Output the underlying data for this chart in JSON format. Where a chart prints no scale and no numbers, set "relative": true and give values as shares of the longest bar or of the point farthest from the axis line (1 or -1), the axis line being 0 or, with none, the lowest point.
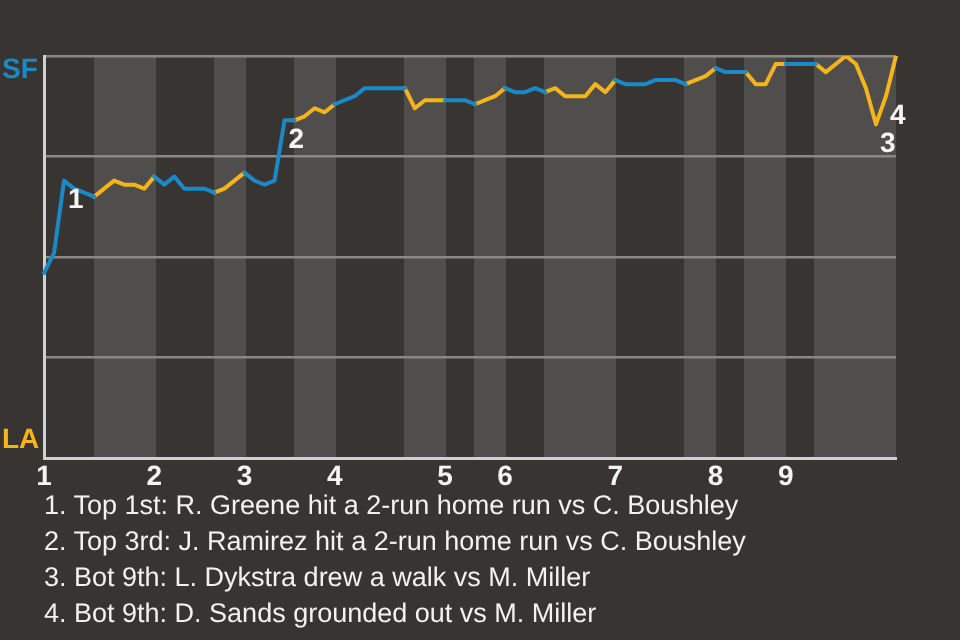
{
  "chart_data": {
    "type": "line",
    "relative": true,
    "categories": [
      "1",
      null,
      null,
      null,
      null,
      null,
      null,
      null,
      null,
      null,
      null,
      "2",
      null,
      null,
      null,
      null,
      null,
      null,
      null,
      null,
      "3",
      null,
      null,
      null,
      null,
      null,
      null,
      null,
      null,
      "4",
      null,
      null,
      null,
      null,
      null,
      null,
      null,
      null,
      null,
      null,
      "5",
      null,
      null,
      null,
      null,
      null,
      "6",
      null,
      null,
      null,
      null,
      null,
      null,
      null,
      null,
      null,
      null,
      "7",
      null,
      null,
      null,
      null,
      null,
      null,
      null,
      null,
      null,
      "8",
      null,
      null,
      null,
      null,
      null,
      null,
      "9",
      null,
      null,
      null,
      null,
      null,
      null,
      null,
      null,
      null,
      null,
      null
    ],
    "series": [
      {
        "color": "#1a8ac6",
        "values": [
          0.46,
          0.51,
          0.69,
          0.67,
          0.66,
          0.65,
          null,
          null,
          null,
          null,
          null,
          0.7,
          0.68,
          0.7,
          0.67,
          0.67,
          0.67,
          0.66,
          null,
          null,
          0.71,
          0.69,
          0.68,
          0.69,
          0.84,
          0.84,
          null,
          null,
          null,
          0.88,
          0.89,
          0.9,
          0.92,
          0.92,
          0.92,
          0.92,
          0.92,
          null,
          null,
          null,
          0.89,
          0.89,
          0.89,
          0.88,
          null,
          null,
          0.92,
          0.91,
          0.91,
          0.92,
          0.91,
          null,
          null,
          null,
          null,
          null,
          null,
          0.94,
          0.93,
          0.93,
          0.93,
          0.94,
          0.94,
          0.94,
          0.93,
          null,
          null,
          0.97,
          0.96,
          0.96,
          0.96,
          null,
          null,
          null,
          0.98,
          0.98,
          0.98,
          0.98,
          null,
          null,
          null,
          null,
          null,
          null,
          null,
          null
        ]
      },
      {
        "color": "#f5b41c",
        "values": [
          null,
          null,
          null,
          null,
          null,
          0.65,
          0.67,
          0.69,
          0.68,
          0.68,
          0.67,
          0.7,
          null,
          null,
          null,
          null,
          null,
          0.66,
          0.67,
          0.69,
          0.71,
          null,
          null,
          null,
          null,
          0.84,
          0.85,
          0.87,
          0.86,
          0.88,
          null,
          null,
          null,
          null,
          null,
          null,
          0.92,
          0.87,
          0.89,
          0.89,
          0.89,
          null,
          null,
          0.88,
          0.89,
          0.9,
          0.92,
          null,
          null,
          null,
          0.91,
          0.92,
          0.9,
          0.9,
          0.9,
          0.93,
          0.91,
          0.94,
          null,
          null,
          null,
          null,
          null,
          null,
          0.93,
          0.94,
          0.95,
          0.97,
          null,
          null,
          0.96,
          0.93,
          0.93,
          0.98,
          0.98,
          null,
          null,
          0.98,
          0.96,
          0.98,
          1,
          0.98,
          0.92,
          0.83,
          0.9,
          1
        ]
      }
    ],
    "grid": "y",
    "marker": "none",
    "annotations": [
      "SF",
      "LA",
      "1",
      "2",
      "3",
      "4",
      "1. Top 1st: R. Greene hit a 2-run home run vs C. Boushley",
      "2. Top 3rd: J. Ramirez hit a 2-run home run vs C. Boushley",
      "3. Bot 9th: L. Dykstra drew a walk vs M. Miller",
      "4. Bot 9th: D. Sands grounded out vs M. Miller"
    ]
  }
}
